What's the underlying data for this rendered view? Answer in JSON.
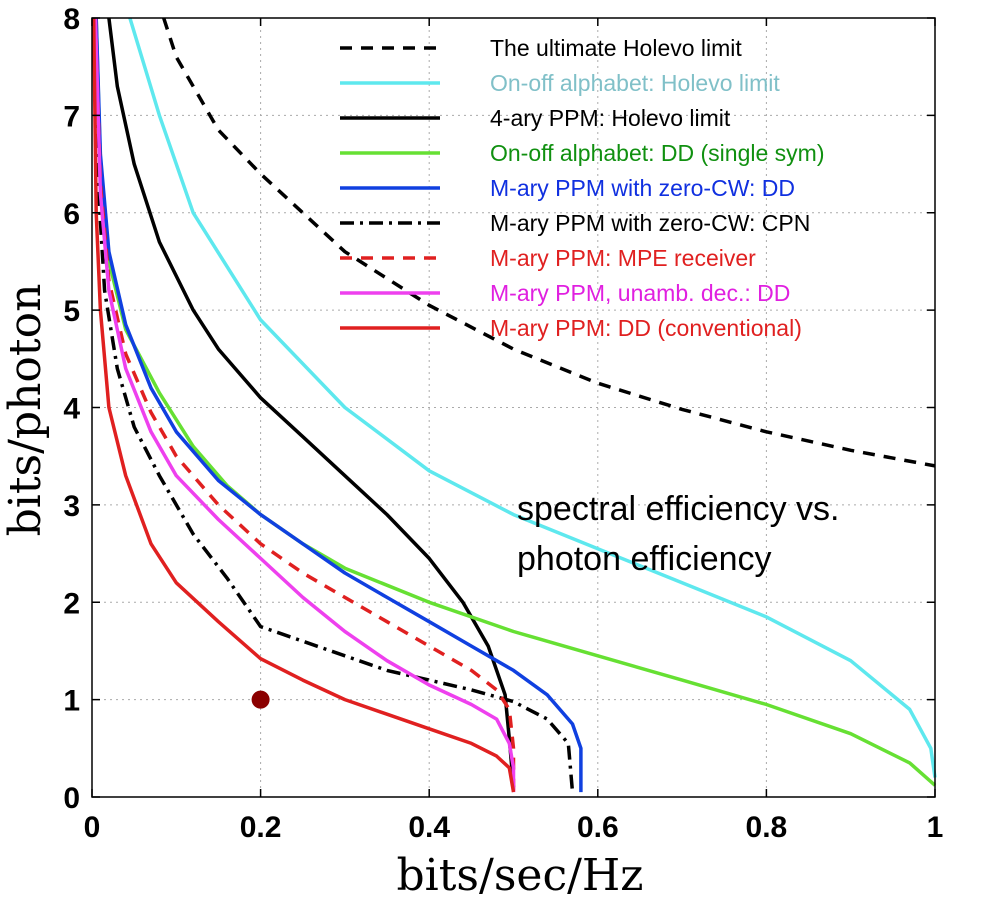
{
  "chart_data": {
    "type": "line",
    "xlabel": "bits/sec/Hz",
    "ylabel": "bits/photon",
    "xlim": [
      0,
      1
    ],
    "ylim": [
      0,
      8
    ],
    "x_ticks": [
      0,
      0.2,
      0.4,
      0.6,
      0.8,
      1
    ],
    "x_tick_labels": [
      "0",
      "0.2",
      "0.4",
      "0.6",
      "0.8",
      "1"
    ],
    "y_ticks": [
      0,
      1,
      2,
      3,
      4,
      5,
      6,
      7,
      8
    ],
    "y_tick_labels": [
      "0",
      "1",
      "2",
      "3",
      "4",
      "5",
      "6",
      "7",
      "8"
    ],
    "grid": true,
    "legend_position": "top-right",
    "annotation": {
      "line1": "spectral efficiency vs.",
      "line2": "photon efficiency"
    },
    "marker_point": {
      "x": 0.2,
      "y": 1.0,
      "color": "#8b0000"
    },
    "series": [
      {
        "name": "The ultimate Holevo limit",
        "color": "#000000",
        "dash": "dash",
        "legend_color": "#000000",
        "points": [
          [
            0.085,
            8.0
          ],
          [
            0.1,
            7.6
          ],
          [
            0.15,
            6.85
          ],
          [
            0.2,
            6.4
          ],
          [
            0.3,
            5.6
          ],
          [
            0.4,
            5.05
          ],
          [
            0.5,
            4.6
          ],
          [
            0.6,
            4.25
          ],
          [
            0.7,
            3.98
          ],
          [
            0.8,
            3.75
          ],
          [
            0.9,
            3.56
          ],
          [
            1.0,
            3.4
          ]
        ]
      },
      {
        "name": "On-off alphabet: Holevo limit",
        "color": "#5ee8ee",
        "dash": "solid",
        "legend_color": "#80c0c8",
        "points": [
          [
            0.045,
            8.0
          ],
          [
            0.08,
            7.0
          ],
          [
            0.12,
            6.0
          ],
          [
            0.2,
            4.9
          ],
          [
            0.3,
            4.0
          ],
          [
            0.4,
            3.35
          ],
          [
            0.5,
            2.9
          ],
          [
            0.6,
            2.55
          ],
          [
            0.7,
            2.2
          ],
          [
            0.8,
            1.85
          ],
          [
            0.9,
            1.4
          ],
          [
            0.97,
            0.9
          ],
          [
            0.995,
            0.5
          ],
          [
            1.0,
            0.2
          ]
        ]
      },
      {
        "name": "4-ary PPM: Holevo limit",
        "color": "#000000",
        "dash": "solid",
        "legend_color": "#000000",
        "points": [
          [
            0.02,
            8.0
          ],
          [
            0.03,
            7.3
          ],
          [
            0.05,
            6.5
          ],
          [
            0.08,
            5.7
          ],
          [
            0.12,
            5.0
          ],
          [
            0.15,
            4.6
          ],
          [
            0.2,
            4.1
          ],
          [
            0.25,
            3.7
          ],
          [
            0.3,
            3.3
          ],
          [
            0.35,
            2.9
          ],
          [
            0.4,
            2.45
          ],
          [
            0.44,
            2.0
          ],
          [
            0.47,
            1.55
          ],
          [
            0.49,
            1.05
          ],
          [
            0.495,
            0.6
          ],
          [
            0.5,
            0.1
          ]
        ]
      },
      {
        "name": "On-off alphabet: DD (single sym)",
        "color": "#66e033",
        "dash": "solid",
        "legend_color": "#109010",
        "points": [
          [
            0.005,
            8.0
          ],
          [
            0.01,
            6.5
          ],
          [
            0.02,
            5.5
          ],
          [
            0.04,
            4.8
          ],
          [
            0.08,
            4.15
          ],
          [
            0.12,
            3.6
          ],
          [
            0.16,
            3.2
          ],
          [
            0.2,
            2.9
          ],
          [
            0.25,
            2.6
          ],
          [
            0.3,
            2.35
          ],
          [
            0.4,
            2.0
          ],
          [
            0.5,
            1.7
          ],
          [
            0.6,
            1.45
          ],
          [
            0.7,
            1.2
          ],
          [
            0.8,
            0.95
          ],
          [
            0.9,
            0.65
          ],
          [
            0.97,
            0.35
          ],
          [
            1.0,
            0.12
          ]
        ]
      },
      {
        "name": "M-ary PPM with zero-CW: DD",
        "color": "#1040e0",
        "dash": "solid",
        "legend_color": "#1030e0",
        "points": [
          [
            0.005,
            8.0
          ],
          [
            0.01,
            6.6
          ],
          [
            0.02,
            5.6
          ],
          [
            0.04,
            4.85
          ],
          [
            0.07,
            4.2
          ],
          [
            0.1,
            3.75
          ],
          [
            0.15,
            3.25
          ],
          [
            0.2,
            2.9
          ],
          [
            0.25,
            2.6
          ],
          [
            0.3,
            2.3
          ],
          [
            0.35,
            2.05
          ],
          [
            0.4,
            1.8
          ],
          [
            0.45,
            1.55
          ],
          [
            0.5,
            1.3
          ],
          [
            0.54,
            1.05
          ],
          [
            0.57,
            0.75
          ],
          [
            0.58,
            0.5
          ],
          [
            0.58,
            0.05
          ]
        ]
      },
      {
        "name": "M-ary PPM with zero-CW: CPN",
        "color": "#000000",
        "dash": "dashdot",
        "legend_color": "#000000",
        "points": [
          [
            0.003,
            8.0
          ],
          [
            0.008,
            6.2
          ],
          [
            0.015,
            5.2
          ],
          [
            0.03,
            4.4
          ],
          [
            0.05,
            3.8
          ],
          [
            0.08,
            3.3
          ],
          [
            0.12,
            2.7
          ],
          [
            0.16,
            2.25
          ],
          [
            0.2,
            1.75
          ],
          [
            0.25,
            1.6
          ],
          [
            0.3,
            1.45
          ],
          [
            0.35,
            1.3
          ],
          [
            0.4,
            1.2
          ],
          [
            0.45,
            1.1
          ],
          [
            0.5,
            0.98
          ],
          [
            0.54,
            0.8
          ],
          [
            0.565,
            0.55
          ],
          [
            0.57,
            0.05
          ]
        ]
      },
      {
        "name": "M-ary PPM: MPE receiver",
        "color": "#e02020",
        "dash": "dash",
        "legend_color": "#e02020",
        "points": [
          [
            0.004,
            8.0
          ],
          [
            0.01,
            6.3
          ],
          [
            0.02,
            5.3
          ],
          [
            0.04,
            4.55
          ],
          [
            0.07,
            3.95
          ],
          [
            0.1,
            3.5
          ],
          [
            0.15,
            3.0
          ],
          [
            0.2,
            2.6
          ],
          [
            0.25,
            2.3
          ],
          [
            0.3,
            2.05
          ],
          [
            0.35,
            1.8
          ],
          [
            0.4,
            1.55
          ],
          [
            0.45,
            1.3
          ],
          [
            0.48,
            1.1
          ],
          [
            0.495,
            0.9
          ],
          [
            0.5,
            0.5
          ],
          [
            0.5,
            0.05
          ]
        ]
      },
      {
        "name": "M-ary PPM, unamb. dec.: DD",
        "color": "#ee40ee",
        "dash": "solid",
        "legend_color": "#e020e0",
        "points": [
          [
            0.004,
            8.0
          ],
          [
            0.01,
            6.2
          ],
          [
            0.02,
            5.2
          ],
          [
            0.04,
            4.4
          ],
          [
            0.07,
            3.75
          ],
          [
            0.1,
            3.3
          ],
          [
            0.15,
            2.85
          ],
          [
            0.2,
            2.45
          ],
          [
            0.25,
            2.05
          ],
          [
            0.3,
            1.7
          ],
          [
            0.35,
            1.4
          ],
          [
            0.4,
            1.15
          ],
          [
            0.45,
            0.95
          ],
          [
            0.48,
            0.8
          ],
          [
            0.495,
            0.55
          ],
          [
            0.5,
            0.3
          ],
          [
            0.5,
            0.05
          ]
        ]
      },
      {
        "name": "M-ary PPM: DD (conventional)",
        "color": "#e02020",
        "dash": "solid",
        "legend_color": "#e02020",
        "points": [
          [
            0.002,
            8.0
          ],
          [
            0.005,
            6.0
          ],
          [
            0.01,
            5.0
          ],
          [
            0.02,
            4.0
          ],
          [
            0.04,
            3.3
          ],
          [
            0.07,
            2.6
          ],
          [
            0.1,
            2.2
          ],
          [
            0.15,
            1.8
          ],
          [
            0.2,
            1.42
          ],
          [
            0.25,
            1.2
          ],
          [
            0.3,
            1.0
          ],
          [
            0.35,
            0.85
          ],
          [
            0.4,
            0.7
          ],
          [
            0.45,
            0.55
          ],
          [
            0.48,
            0.42
          ],
          [
            0.495,
            0.3
          ],
          [
            0.5,
            0.05
          ]
        ]
      }
    ]
  }
}
